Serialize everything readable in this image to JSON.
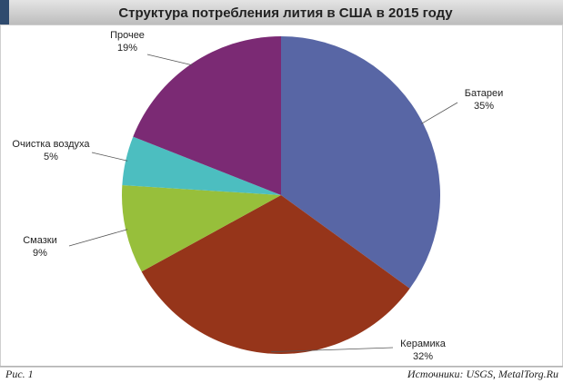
{
  "chart_data": {
    "type": "pie",
    "title": "Структура потребления лития в США в 2015 году",
    "categories": [
      "Батареи",
      "Керамика",
      "Смазки",
      "Очистка воздуха",
      "Прочее"
    ],
    "values": [
      35,
      32,
      9,
      5,
      19
    ],
    "value_labels": [
      "35%",
      "32%",
      "9%",
      "5%",
      "19%"
    ],
    "colors": [
      "#5866a5",
      "#96351a",
      "#97bf3b",
      "#4cbec0",
      "#7b2a74"
    ]
  },
  "figure_label": "Рис. 1",
  "source": "Источники: USGS, MetalTorg.Ru"
}
